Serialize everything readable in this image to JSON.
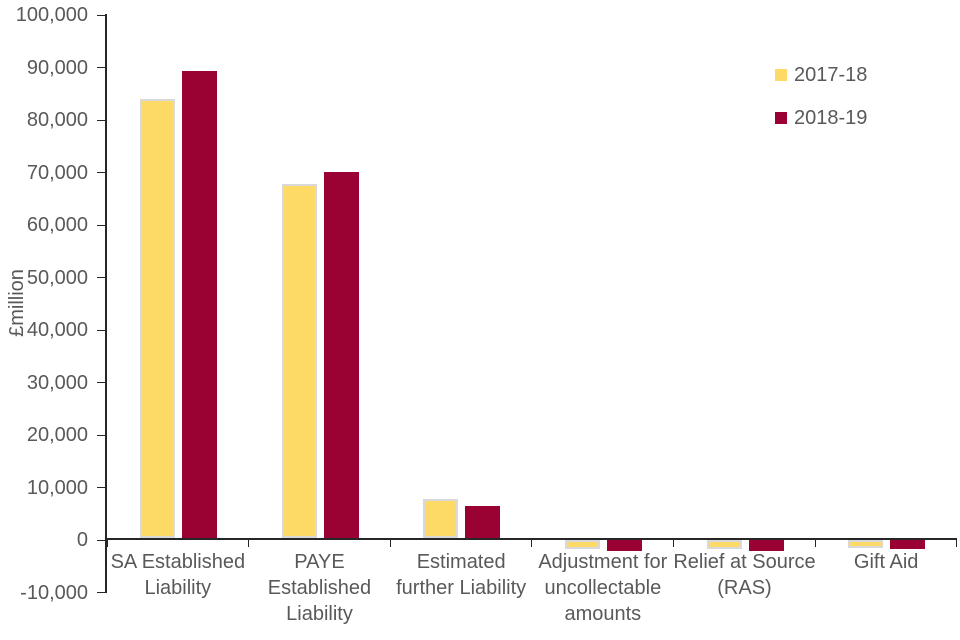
{
  "chart_data": {
    "type": "bar",
    "title": "",
    "ylabel": "£million",
    "categories": [
      "SA Established Liability",
      "PAYE Established Liability",
      "Estimated further Liability",
      "Adjustment for uncollectable amounts",
      "Relief at Source (RAS)",
      "Gift Aid"
    ],
    "series": [
      {
        "name": "2017-18",
        "color": "#FDD965",
        "border_color": "#D9D9D9",
        "values": [
          83600,
          67400,
          7400,
          -1800,
          -1800,
          -1600
        ]
      },
      {
        "name": "2018-19",
        "color": "#9A0234",
        "border_color": "",
        "values": [
          89000,
          69700,
          6100,
          -2000,
          -2000,
          -1800
        ]
      }
    ],
    "y_axis": {
      "min": -10000,
      "max": 100000,
      "step": 10000,
      "tick_labels": [
        "100,000",
        "90,000",
        "80,000",
        "70,000",
        "60,000",
        "50,000",
        "40,000",
        "30,000",
        "20,000",
        "10,000",
        "0",
        "-10,000"
      ]
    },
    "legend": {
      "position": "top-right",
      "entries": [
        "2017-18",
        "2018-19"
      ]
    },
    "grid": "off",
    "colors": {
      "text": "#595959",
      "axis": "#262626",
      "background": "#FFFFFF"
    }
  }
}
